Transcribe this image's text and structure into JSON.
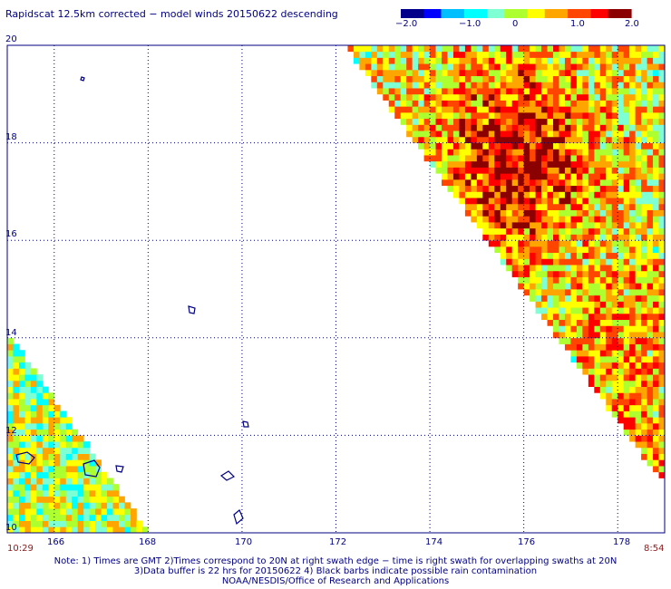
{
  "title": "Rapidscat 12.5km corrected − model winds 20150622 descending",
  "colorbar": {
    "range": [
      -2.0,
      2.0
    ],
    "labels": [
      "−2.0",
      "−1.0",
      "0",
      "1.0",
      "2.0"
    ],
    "colors": [
      "#00008b",
      "#0000ff",
      "#00bfff",
      "#00ffff",
      "#7fffd4",
      "#adff2f",
      "#ffff00",
      "#ffa500",
      "#ff4500",
      "#ff0000",
      "#8b0000"
    ]
  },
  "axes": {
    "x_ticks": [
      "166",
      "168",
      "170",
      "172",
      "174",
      "176",
      "178"
    ],
    "y_ticks": [
      "20",
      "18",
      "16",
      "14",
      "12",
      "10"
    ]
  },
  "times": {
    "left": "10:29",
    "right": "8:54"
  },
  "notes": [
    "Note: 1) Times are GMT 2)Times correspond to 20N at right swath edge − time is right swath for overlapping swaths at 20N",
    "3)Data buffer is 22 hrs for 20150622 4) Black barbs indicate possible rain contamination",
    "NOAA/NESDIS/Office of Research and Applications"
  ],
  "chart_data": {
    "type": "heatmap",
    "title": "Rapidscat 12.5km corrected − model winds 20150622 descending",
    "xlim": [
      165,
      179
    ],
    "ylim": [
      10,
      20
    ],
    "x_ticks": [
      166,
      168,
      170,
      172,
      174,
      176,
      178
    ],
    "y_ticks": [
      10,
      12,
      14,
      16,
      18,
      20
    ],
    "color_range": [
      -2.0,
      2.0
    ],
    "grid": true,
    "swaths": [
      {
        "lon_range": [
          165,
          167.9
        ],
        "lat_range": [
          10,
          14
        ],
        "value_range": [
          -0.8,
          0.9
        ]
      },
      {
        "lon_range": [
          172.2,
          179
        ],
        "lat_range": [
          11,
          20
        ],
        "value_range": [
          -1.2,
          2.0
        ]
      }
    ]
  }
}
